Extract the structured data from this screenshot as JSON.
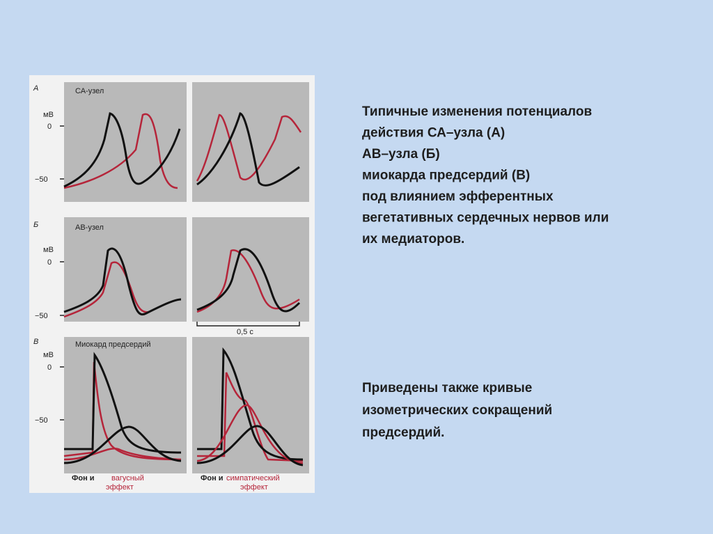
{
  "figure": {
    "panels": [
      {
        "letter": "А",
        "title": "СА-узел"
      },
      {
        "letter": "Б",
        "title": "АВ-узел"
      },
      {
        "letter": "В",
        "title": "Миокард предсердий"
      }
    ],
    "axis": {
      "unit": "мВ",
      "ticks": [
        "0",
        "−50"
      ]
    },
    "scale_bar": "0,5 с",
    "legend": [
      {
        "background": "Фон и",
        "effect": [
          "вагусный",
          "эффект"
        ]
      },
      {
        "background": "Фон и",
        "effect": [
          "симпатический",
          "эффект"
        ]
      }
    ]
  },
  "text": {
    "paragraph": [
      "Типичные изменения потенциалов",
      "действия СА–узла (А)",
      "АВ–узла (Б)",
      "миокарда предсердий (В)",
      "под влиянием эфферентных",
      "вегетативных сердечных нервов или",
      "их медиаторов."
    ],
    "note": [
      "Приведены также кривые",
      "изометрических сокращений",
      "предсердий."
    ]
  }
}
